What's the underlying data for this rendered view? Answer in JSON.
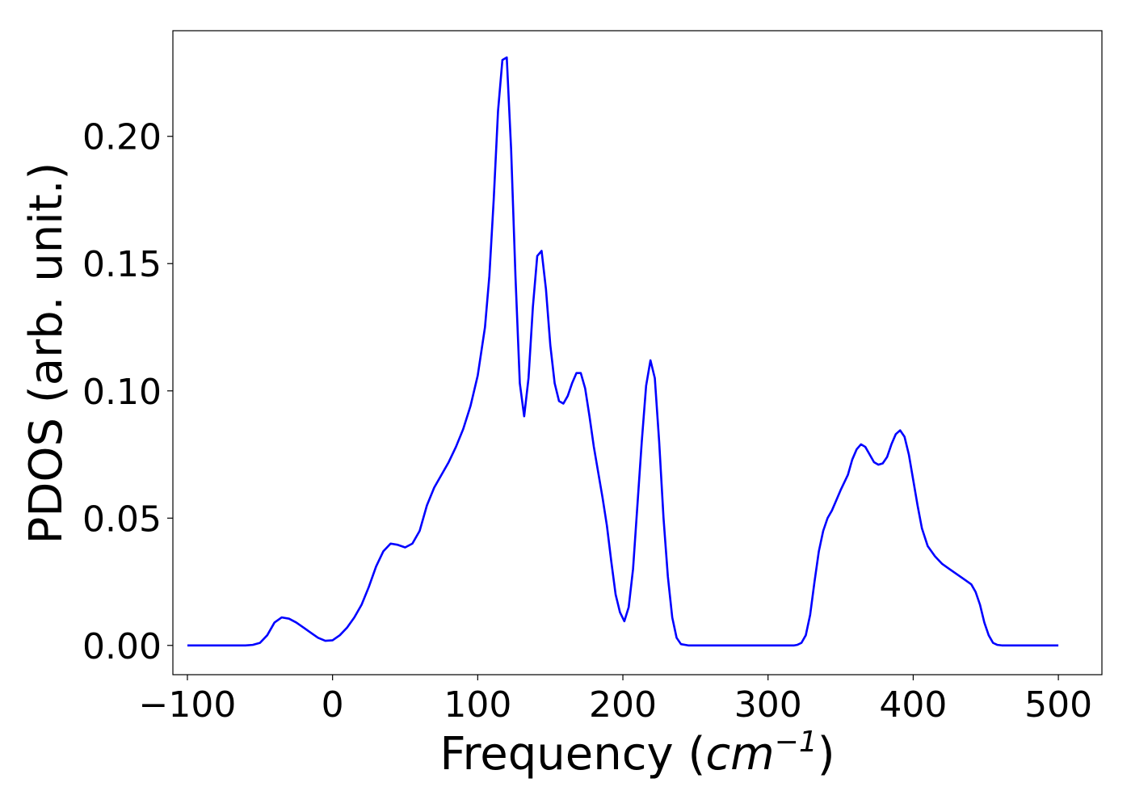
{
  "chart_data": {
    "type": "line",
    "title": "",
    "xlabel": "Frequency",
    "xlabel_unit_base": "cm",
    "xlabel_unit_exp": "−1",
    "ylabel": "PDOS (arb. unit.)",
    "xlim": [
      -110,
      530
    ],
    "ylim": [
      -0.0115,
      0.2415
    ],
    "xticks": [
      -100,
      0,
      100,
      200,
      300,
      400,
      500
    ],
    "xtick_labels": [
      "−100",
      "0",
      "100",
      "200",
      "300",
      "400",
      "500"
    ],
    "yticks": [
      0.0,
      0.05,
      0.1,
      0.15,
      0.2
    ],
    "ytick_labels": [
      "0.00",
      "0.05",
      "0.10",
      "0.15",
      "0.20"
    ],
    "grid": false,
    "series": [
      {
        "color": "#0000ff",
        "x": [
          -100,
          -60,
          -55,
          -50,
          -45,
          -40,
          -35,
          -30,
          -25,
          -20,
          -15,
          -10,
          -5,
          0,
          5,
          10,
          15,
          20,
          25,
          30,
          35,
          40,
          45,
          50,
          55,
          60,
          65,
          70,
          75,
          80,
          85,
          90,
          95,
          100,
          105,
          108,
          111,
          114,
          117,
          120,
          123,
          126,
          129,
          132,
          135,
          138,
          141,
          144,
          147,
          150,
          153,
          156,
          159,
          162,
          165,
          168,
          171,
          174,
          177,
          180,
          183,
          186,
          189,
          192,
          195,
          198,
          201,
          204,
          207,
          210,
          213,
          216,
          219,
          222,
          225,
          228,
          231,
          234,
          237,
          240,
          245,
          250,
          300,
          318,
          320,
          323,
          326,
          329,
          332,
          335,
          338,
          341,
          344,
          347,
          350,
          355,
          358,
          361,
          364,
          367,
          370,
          373,
          376,
          379,
          382,
          385,
          388,
          391,
          394,
          397,
          400,
          403,
          406,
          410,
          415,
          420,
          425,
          430,
          435,
          440,
          443,
          446,
          449,
          452,
          455,
          458,
          461,
          465,
          470,
          500
        ],
        "y": [
          0.0,
          0.0,
          0.0002,
          0.001,
          0.004,
          0.009,
          0.011,
          0.0105,
          0.009,
          0.007,
          0.005,
          0.003,
          0.0018,
          0.002,
          0.004,
          0.007,
          0.011,
          0.016,
          0.023,
          0.031,
          0.037,
          0.04,
          0.0395,
          0.0385,
          0.04,
          0.045,
          0.055,
          0.062,
          0.067,
          0.072,
          0.078,
          0.085,
          0.094,
          0.106,
          0.125,
          0.145,
          0.175,
          0.21,
          0.23,
          0.231,
          0.195,
          0.145,
          0.103,
          0.09,
          0.105,
          0.133,
          0.153,
          0.155,
          0.14,
          0.118,
          0.103,
          0.096,
          0.095,
          0.098,
          0.103,
          0.107,
          0.107,
          0.101,
          0.09,
          0.078,
          0.068,
          0.058,
          0.047,
          0.033,
          0.02,
          0.013,
          0.0095,
          0.015,
          0.03,
          0.055,
          0.08,
          0.102,
          0.112,
          0.105,
          0.08,
          0.05,
          0.027,
          0.011,
          0.003,
          0.0005,
          0.0,
          0.0,
          0.0,
          0.0,
          0.0002,
          0.001,
          0.004,
          0.012,
          0.025,
          0.037,
          0.045,
          0.05,
          0.053,
          0.057,
          0.061,
          0.067,
          0.073,
          0.077,
          0.079,
          0.078,
          0.075,
          0.072,
          0.071,
          0.0715,
          0.074,
          0.079,
          0.083,
          0.0845,
          0.082,
          0.075,
          0.065,
          0.055,
          0.046,
          0.039,
          0.035,
          0.032,
          0.03,
          0.028,
          0.026,
          0.024,
          0.021,
          0.016,
          0.009,
          0.004,
          0.001,
          0.0002,
          0.0,
          0.0,
          0.0,
          0.0
        ]
      }
    ]
  }
}
